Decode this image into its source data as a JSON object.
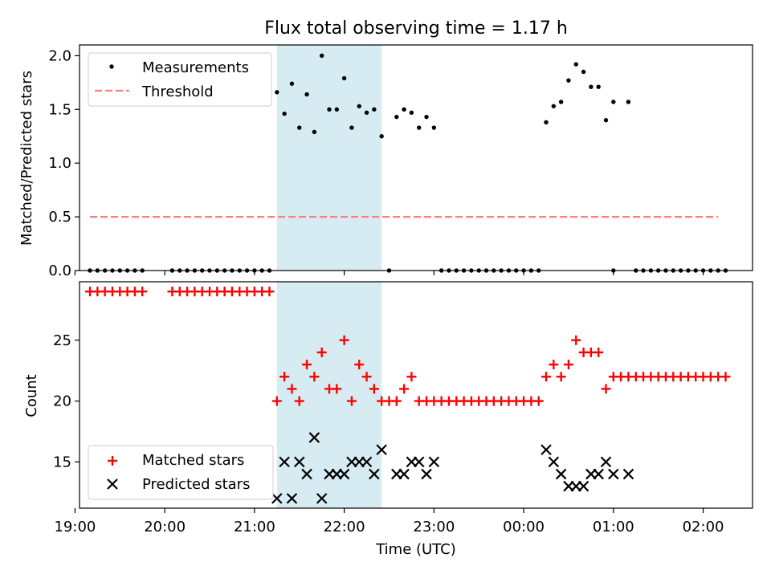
{
  "chart_data": [
    {
      "type": "scatter",
      "title": "Flux total observing time = 1.17 h",
      "ylabel": "Matched/Predicted stars",
      "xlabel": "",
      "x_unit": "time (UTC)",
      "xlim": [
        "19:03",
        "02:33"
      ],
      "ylim": [
        0,
        2.1
      ],
      "y_ticks": [
        "0.0",
        "0.5",
        "1.0",
        "1.5",
        "2.0"
      ],
      "x_ticks": [
        "19:00",
        "20:00",
        "21:00",
        "22:00",
        "23:00",
        "00:00",
        "01:00",
        "02:00"
      ],
      "x_tick_labels_visible": false,
      "shaded_interval": [
        "21:15",
        "22:25"
      ],
      "shaded_color": "#add8e6",
      "legend": {
        "position": "upper left",
        "entries": [
          "Measurements",
          "Threshold"
        ]
      },
      "series": [
        {
          "name": "Measurements",
          "marker": "dot",
          "color": "#000000",
          "points": [
            [
              "19:10",
              0
            ],
            [
              "19:15",
              0
            ],
            [
              "19:20",
              0
            ],
            [
              "19:25",
              0
            ],
            [
              "19:30",
              0
            ],
            [
              "19:35",
              0
            ],
            [
              "19:40",
              0
            ],
            [
              "19:45",
              0
            ],
            [
              "20:05",
              0
            ],
            [
              "20:10",
              0
            ],
            [
              "20:15",
              0
            ],
            [
              "20:20",
              0
            ],
            [
              "20:25",
              0
            ],
            [
              "20:30",
              0
            ],
            [
              "20:35",
              0
            ],
            [
              "20:40",
              0
            ],
            [
              "20:45",
              0
            ],
            [
              "20:50",
              0
            ],
            [
              "20:55",
              0
            ],
            [
              "21:00",
              0
            ],
            [
              "21:05",
              0
            ],
            [
              "21:10",
              0
            ],
            [
              "21:15",
              1.66
            ],
            [
              "21:20",
              1.46
            ],
            [
              "21:25",
              1.74
            ],
            [
              "21:30",
              1.33
            ],
            [
              "21:35",
              1.64
            ],
            [
              "21:40",
              1.29
            ],
            [
              "21:45",
              2.0
            ],
            [
              "21:50",
              1.5
            ],
            [
              "21:55",
              1.5
            ],
            [
              "22:00",
              1.79
            ],
            [
              "22:05",
              1.33
            ],
            [
              "22:10",
              1.53
            ],
            [
              "22:15",
              1.47
            ],
            [
              "22:20",
              1.5
            ],
            [
              "22:25",
              1.25
            ],
            [
              "22:30",
              0
            ],
            [
              "22:35",
              1.43
            ],
            [
              "22:40",
              1.5
            ],
            [
              "22:45",
              1.47
            ],
            [
              "22:50",
              1.33
            ],
            [
              "22:55",
              1.43
            ],
            [
              "23:00",
              1.33
            ],
            [
              "23:05",
              0
            ],
            [
              "23:10",
              0
            ],
            [
              "23:15",
              0
            ],
            [
              "23:20",
              0
            ],
            [
              "23:25",
              0
            ],
            [
              "23:30",
              0
            ],
            [
              "23:35",
              0
            ],
            [
              "23:40",
              0
            ],
            [
              "23:45",
              0
            ],
            [
              "23:50",
              0
            ],
            [
              "23:55",
              0
            ],
            [
              "00:00",
              0
            ],
            [
              "00:05",
              0
            ],
            [
              "00:10",
              0
            ],
            [
              "00:15",
              1.38
            ],
            [
              "00:20",
              1.53
            ],
            [
              "00:25",
              1.57
            ],
            [
              "00:30",
              1.77
            ],
            [
              "00:35",
              1.92
            ],
            [
              "00:40",
              1.85
            ],
            [
              "00:45",
              1.71
            ],
            [
              "00:50",
              1.71
            ],
            [
              "00:55",
              1.4
            ],
            [
              "01:00",
              1.57
            ],
            [
              "01:00",
              0
            ],
            [
              "01:10",
              1.57
            ],
            [
              "01:15",
              0
            ],
            [
              "01:20",
              0
            ],
            [
              "01:25",
              0
            ],
            [
              "01:30",
              0
            ],
            [
              "01:35",
              0
            ],
            [
              "01:40",
              0
            ],
            [
              "01:45",
              0
            ],
            [
              "01:50",
              0
            ],
            [
              "01:55",
              0
            ],
            [
              "02:00",
              0
            ],
            [
              "02:05",
              0
            ],
            [
              "02:10",
              0
            ],
            [
              "02:15",
              0
            ]
          ]
        },
        {
          "name": "Threshold",
          "marker": "dashed-line",
          "color": "#ff7f7f",
          "points": [
            [
              "19:10",
              0.5
            ],
            [
              "02:10",
              0.5
            ]
          ]
        }
      ]
    },
    {
      "type": "scatter",
      "title": "",
      "ylabel": "Count",
      "xlabel": "Time (UTC)",
      "xlim": [
        "19:03",
        "02:33"
      ],
      "ylim": [
        11.2,
        29.8
      ],
      "y_ticks": [
        "15",
        "20",
        "25"
      ],
      "x_ticks": [
        "19:00",
        "20:00",
        "21:00",
        "22:00",
        "23:00",
        "00:00",
        "01:00",
        "02:00"
      ],
      "shaded_interval": [
        "21:15",
        "22:25"
      ],
      "shaded_color": "#add8e6",
      "legend": {
        "position": "lower left",
        "entries": [
          "Matched stars",
          "Predicted stars"
        ]
      },
      "series": [
        {
          "name": "Matched stars",
          "marker": "plus",
          "color": "#ff0000",
          "points": [
            [
              "19:10",
              29
            ],
            [
              "19:15",
              29
            ],
            [
              "19:20",
              29
            ],
            [
              "19:25",
              29
            ],
            [
              "19:30",
              29
            ],
            [
              "19:35",
              29
            ],
            [
              "19:40",
              29
            ],
            [
              "19:45",
              29
            ],
            [
              "20:05",
              29
            ],
            [
              "20:10",
              29
            ],
            [
              "20:15",
              29
            ],
            [
              "20:20",
              29
            ],
            [
              "20:25",
              29
            ],
            [
              "20:30",
              29
            ],
            [
              "20:35",
              29
            ],
            [
              "20:40",
              29
            ],
            [
              "20:45",
              29
            ],
            [
              "20:50",
              29
            ],
            [
              "20:55",
              29
            ],
            [
              "21:00",
              29
            ],
            [
              "21:05",
              29
            ],
            [
              "21:10",
              29
            ],
            [
              "21:15",
              20
            ],
            [
              "21:20",
              22
            ],
            [
              "21:25",
              21
            ],
            [
              "21:30",
              20
            ],
            [
              "21:35",
              23
            ],
            [
              "21:40",
              22
            ],
            [
              "21:45",
              24
            ],
            [
              "21:50",
              21
            ],
            [
              "21:55",
              21
            ],
            [
              "22:00",
              25
            ],
            [
              "22:05",
              20
            ],
            [
              "22:10",
              23
            ],
            [
              "22:15",
              22
            ],
            [
              "22:20",
              21
            ],
            [
              "22:25",
              20
            ],
            [
              "22:30",
              20
            ],
            [
              "22:35",
              20
            ],
            [
              "22:40",
              21
            ],
            [
              "22:45",
              22
            ],
            [
              "22:50",
              20
            ],
            [
              "22:55",
              20
            ],
            [
              "23:00",
              20
            ],
            [
              "23:05",
              20
            ],
            [
              "23:10",
              20
            ],
            [
              "23:15",
              20
            ],
            [
              "23:20",
              20
            ],
            [
              "23:25",
              20
            ],
            [
              "23:30",
              20
            ],
            [
              "23:35",
              20
            ],
            [
              "23:40",
              20
            ],
            [
              "23:45",
              20
            ],
            [
              "23:50",
              20
            ],
            [
              "23:55",
              20
            ],
            [
              "00:00",
              20
            ],
            [
              "00:05",
              20
            ],
            [
              "00:10",
              20
            ],
            [
              "00:15",
              22
            ],
            [
              "00:20",
              23
            ],
            [
              "00:25",
              22
            ],
            [
              "00:30",
              23
            ],
            [
              "00:35",
              25
            ],
            [
              "00:40",
              24
            ],
            [
              "00:45",
              24
            ],
            [
              "00:50",
              24
            ],
            [
              "00:55",
              21
            ],
            [
              "01:00",
              22
            ],
            [
              "01:05",
              22
            ],
            [
              "01:10",
              22
            ],
            [
              "01:15",
              22
            ],
            [
              "01:20",
              22
            ],
            [
              "01:25",
              22
            ],
            [
              "01:30",
              22
            ],
            [
              "01:35",
              22
            ],
            [
              "01:40",
              22
            ],
            [
              "01:45",
              22
            ],
            [
              "01:50",
              22
            ],
            [
              "01:55",
              22
            ],
            [
              "02:00",
              22
            ],
            [
              "02:05",
              22
            ],
            [
              "02:10",
              22
            ],
            [
              "02:15",
              22
            ]
          ]
        },
        {
          "name": "Predicted stars",
          "marker": "x",
          "color": "#000000",
          "points": [
            [
              "21:15",
              12
            ],
            [
              "21:20",
              15
            ],
            [
              "21:25",
              12
            ],
            [
              "21:30",
              15
            ],
            [
              "21:35",
              14
            ],
            [
              "21:40",
              17
            ],
            [
              "21:45",
              12
            ],
            [
              "21:50",
              14
            ],
            [
              "21:55",
              14
            ],
            [
              "22:00",
              14
            ],
            [
              "22:05",
              15
            ],
            [
              "22:10",
              15
            ],
            [
              "22:15",
              15
            ],
            [
              "22:20",
              14
            ],
            [
              "22:25",
              16
            ],
            [
              "22:35",
              14
            ],
            [
              "22:40",
              14
            ],
            [
              "22:45",
              15
            ],
            [
              "22:50",
              15
            ],
            [
              "22:55",
              14
            ],
            [
              "23:00",
              15
            ],
            [
              "00:15",
              16
            ],
            [
              "00:20",
              15
            ],
            [
              "00:25",
              14
            ],
            [
              "00:30",
              13
            ],
            [
              "00:35",
              13
            ],
            [
              "00:40",
              13
            ],
            [
              "00:45",
              14
            ],
            [
              "00:50",
              14
            ],
            [
              "00:55",
              15
            ],
            [
              "01:00",
              14
            ],
            [
              "01:10",
              14
            ]
          ]
        }
      ]
    }
  ]
}
